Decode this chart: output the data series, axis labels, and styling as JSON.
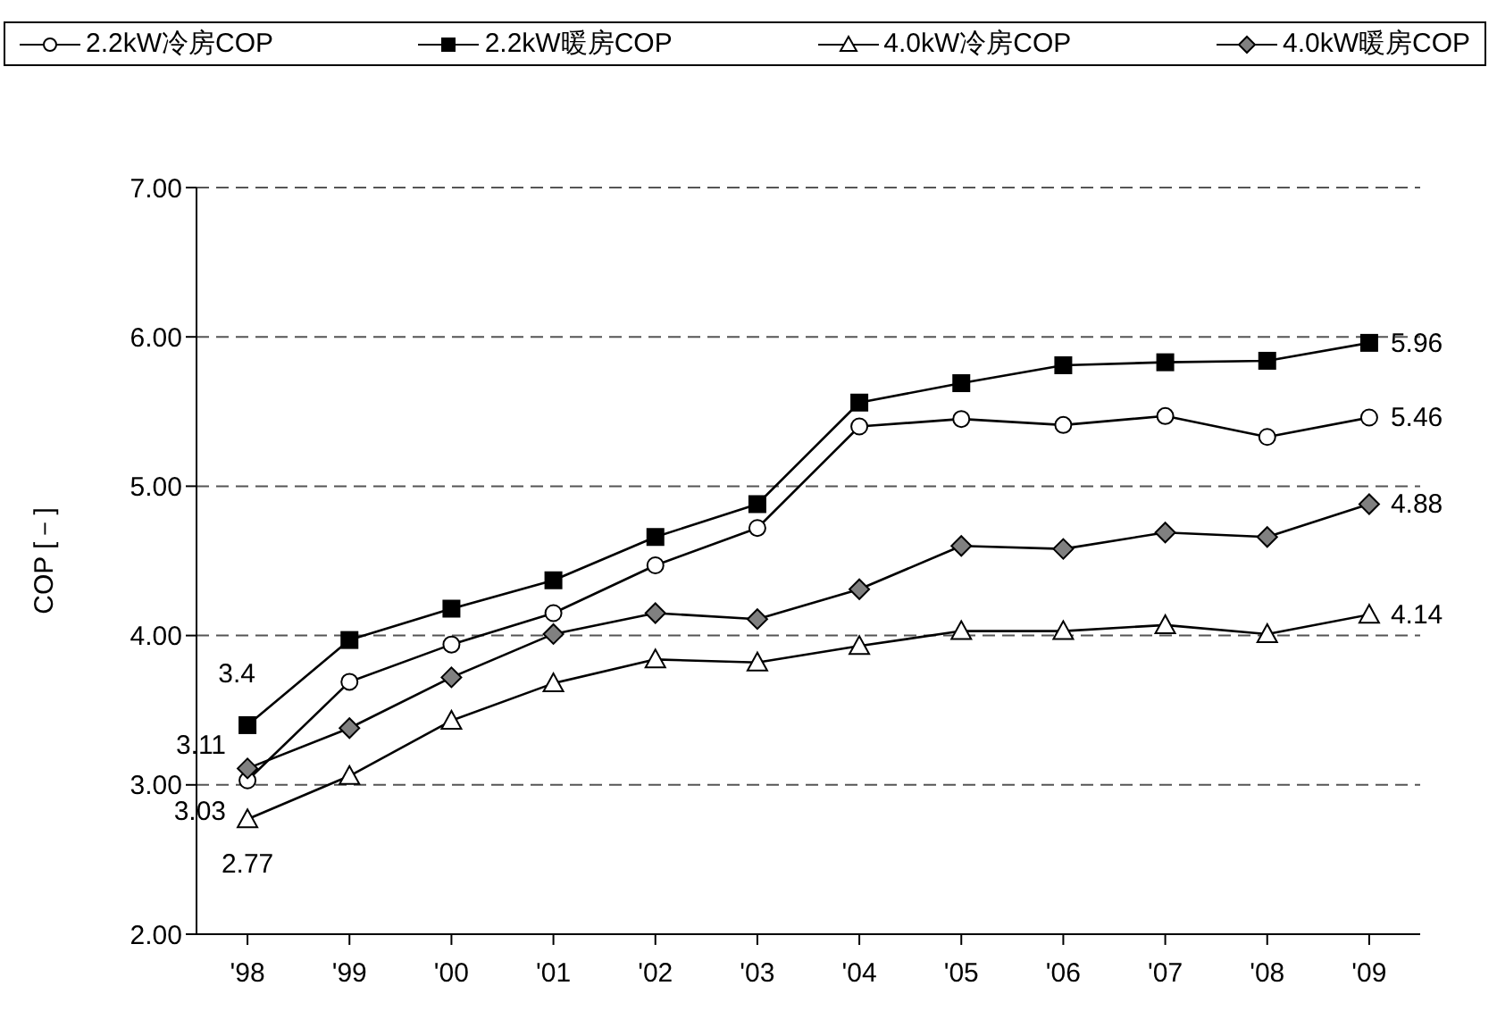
{
  "chart_data": {
    "type": "line",
    "ylabel": "COP [－]",
    "categories": [
      "'98",
      "'99",
      "'00",
      "'01",
      "'02",
      "'03",
      "'04",
      "'05",
      "'06",
      "'07",
      "'08",
      "'09"
    ],
    "series": [
      {
        "name": "2.2kW冷房COP",
        "color": "#ffffff",
        "marker": "circle",
        "values": [
          3.03,
          3.69,
          3.94,
          4.15,
          4.47,
          4.72,
          5.4,
          5.45,
          5.41,
          5.47,
          5.33,
          5.46
        ],
        "value_labels": [
          "3.03",
          null,
          null,
          null,
          null,
          null,
          null,
          null,
          null,
          null,
          null,
          "5.46"
        ]
      },
      {
        "name": "2.2kW暖房COP",
        "color": "#000000",
        "marker": "square",
        "values": [
          3.4,
          3.97,
          4.18,
          4.37,
          4.66,
          4.88,
          5.56,
          5.69,
          5.81,
          5.83,
          5.84,
          5.96
        ],
        "value_labels": [
          "3.4",
          null,
          null,
          null,
          null,
          null,
          null,
          null,
          null,
          null,
          null,
          "5.96"
        ]
      },
      {
        "name": "4.0kW冷房COP",
        "color": "#ffffff",
        "marker": "triangle",
        "values": [
          2.77,
          3.06,
          3.43,
          3.68,
          3.84,
          3.82,
          3.93,
          4.03,
          4.03,
          4.07,
          4.01,
          4.14
        ],
        "value_labels": [
          "2.77",
          null,
          null,
          null,
          null,
          null,
          null,
          null,
          null,
          null,
          null,
          "4.14"
        ]
      },
      {
        "name": "4.0kW暖房COP",
        "color": "#808080",
        "marker": "diamond",
        "values": [
          3.11,
          3.38,
          3.72,
          4.01,
          4.15,
          4.11,
          4.31,
          4.6,
          4.58,
          4.69,
          4.66,
          4.88
        ],
        "value_labels": [
          "3.11",
          null,
          null,
          null,
          null,
          null,
          null,
          null,
          null,
          null,
          null,
          "4.88"
        ]
      }
    ],
    "ylim": [
      2,
      7
    ],
    "yticks": [
      {
        "value": 2,
        "label": "2.00"
      },
      {
        "value": 3,
        "label": "3.00"
      },
      {
        "value": 4,
        "label": "4.00"
      },
      {
        "value": 5,
        "label": "5.00"
      },
      {
        "value": 6,
        "label": "6.00"
      },
      {
        "value": 7,
        "label": "7.00"
      }
    ],
    "grid": "y",
    "legend": "top",
    "line_style": "solid"
  }
}
